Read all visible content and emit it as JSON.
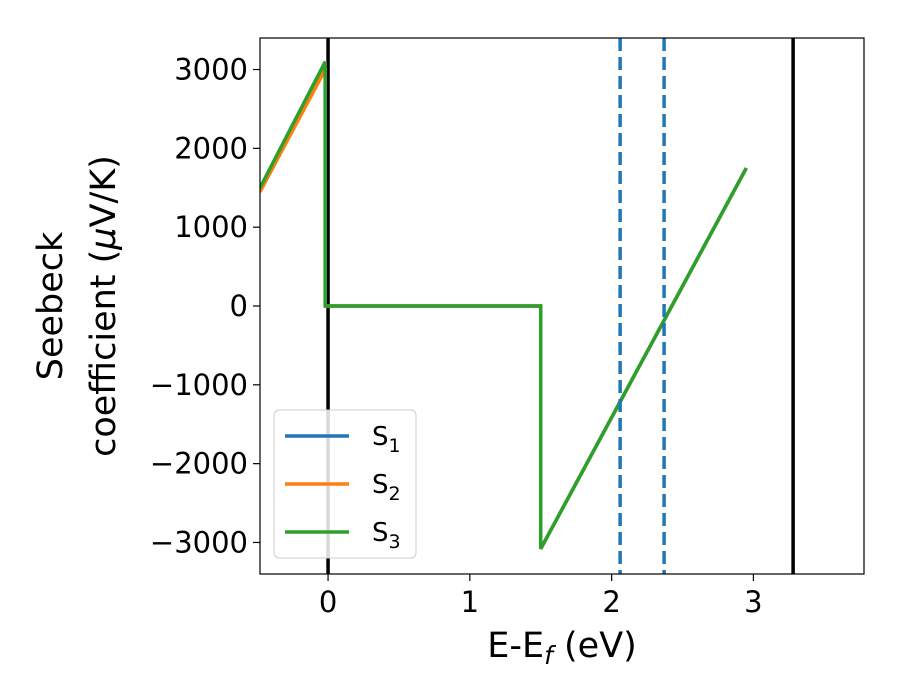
{
  "chart_data": {
    "type": "line",
    "title": "",
    "xlabel": "E-E",
    "xlabel_sub": "f",
    "xlabel_unit": " (eV)",
    "ylabel_line1": "Seebeck",
    "ylabel_line2_pre": "coefficient  (",
    "ylabel_line2_mu": "μ",
    "ylabel_line2_post": "V/K)",
    "xlim": [
      -0.48,
      3.78
    ],
    "ylim": [
      -3400,
      3400
    ],
    "xticks": [
      0,
      1,
      2,
      3
    ],
    "yticks": [
      -3000,
      -2000,
      -1000,
      0,
      1000,
      2000,
      3000
    ],
    "ytick_labels": [
      "−3000",
      "−2000",
      "−1000",
      "0",
      "1000",
      "2000",
      "3000"
    ],
    "grid": false,
    "legend_position": "lower-left",
    "series": [
      {
        "name": "S",
        "sub": "1",
        "color": "#1f77b4",
        "x": [
          -0.48,
          -0.02,
          -0.02,
          1.5,
          1.5,
          2.95
        ],
        "y": [
          1450,
          3020,
          0,
          0,
          -3080,
          1750
        ]
      },
      {
        "name": "S",
        "sub": "2",
        "color": "#ff7f0e",
        "x": [
          -0.48,
          -0.02,
          -0.02,
          1.5,
          1.5,
          2.95
        ],
        "y": [
          1450,
          3000,
          0,
          0,
          -3080,
          1750
        ]
      },
      {
        "name": "S",
        "sub": "3",
        "color": "#2ca02c",
        "x": [
          -0.48,
          -0.02,
          -0.02,
          1.5,
          1.5,
          2.95
        ],
        "y": [
          1500,
          3100,
          0,
          0,
          -3080,
          1750
        ]
      }
    ],
    "vertical_lines": [
      {
        "x": 0.0,
        "color": "#000000",
        "style": "solid"
      },
      {
        "x": 3.28,
        "color": "#000000",
        "style": "solid"
      },
      {
        "x": 2.06,
        "color": "#1f77b4",
        "style": "dashed"
      },
      {
        "x": 2.37,
        "color": "#1f77b4",
        "style": "dashed"
      }
    ]
  }
}
